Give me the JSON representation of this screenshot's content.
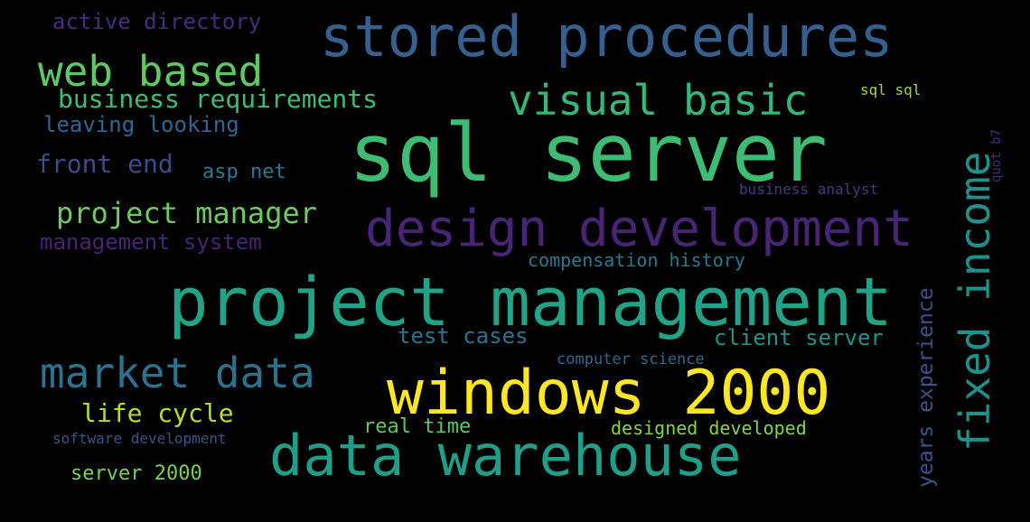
{
  "colors": {
    "background": "#000000",
    "dark_purple": "#482374",
    "purple": "#472c7a",
    "blue": "#3b528b",
    "steel_blue": "#33638d",
    "teal_blue": "#2c728e",
    "teal": "#21908d",
    "sea_green": "#27ad81",
    "green": "#5cc863",
    "lime": "#aadc32",
    "yellow": "#fde725"
  },
  "words": {
    "sql_server": "sql server",
    "project_management": "project management",
    "windows_2000": "windows 2000",
    "stored_procedures": "stored procedures",
    "design_development": "design development",
    "data_warehouse": "data warehouse",
    "fixed_income": "fixed income",
    "market_data": "market data",
    "web_based": "web based",
    "visual_basic": "visual basic",
    "project_manager": "project manager",
    "business_requirements": "business requirements",
    "active_directory": "active directory",
    "leaving_looking": "leaving looking",
    "front_end": "front end",
    "asp_net": "asp net",
    "management_system": "management system",
    "life_cycle": "life cycle",
    "server_2000": "server 2000",
    "software_development": "software development",
    "test_cases": "test cases",
    "client_server": "client server",
    "compensation_history": "compensation history",
    "computer_science": "computer science",
    "real_time": "real time",
    "designed_developed": "designed developed",
    "years_experience": "years experience",
    "sql_sql": "sql sql",
    "quot_b7": "quot b7",
    "business_analyst": "business analyst"
  }
}
